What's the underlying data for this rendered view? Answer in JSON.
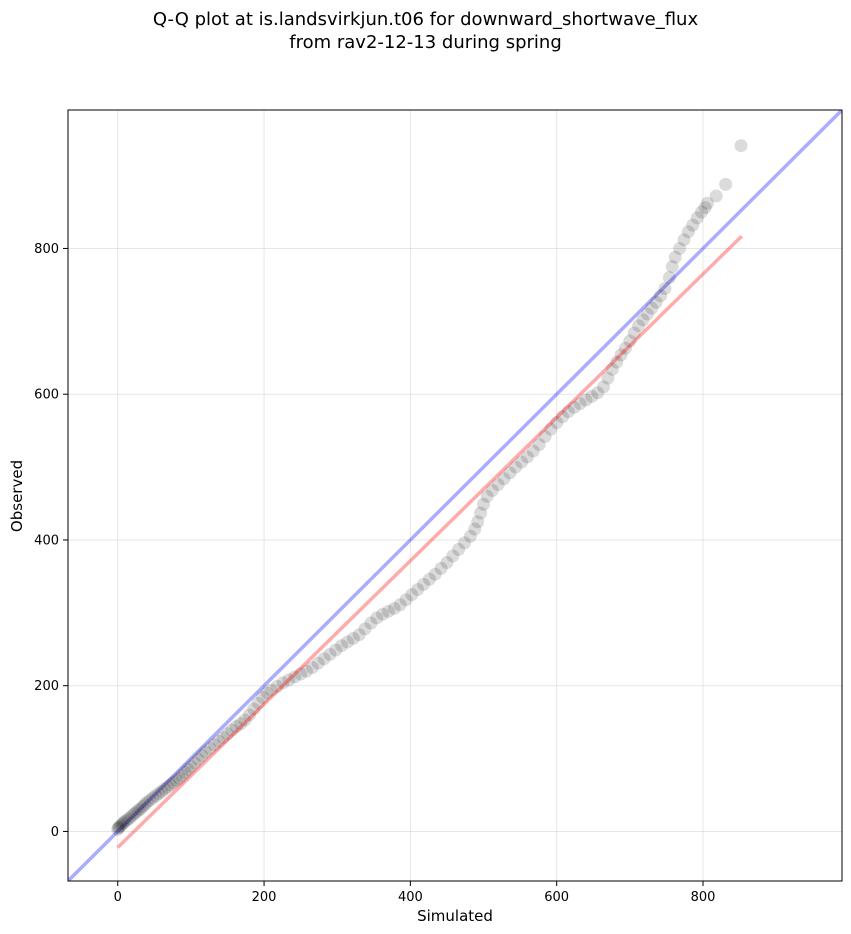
{
  "chart_data": {
    "type": "scatter",
    "title_line1": "Q-Q plot at is.landsvirkjun.t06 for downward_shortwave_flux",
    "title_line2": "from rav2-12-13 during spring",
    "xlabel": "Simulated",
    "ylabel": "Observed",
    "xlim": [
      -68,
      990
    ],
    "ylim": [
      -68,
      990
    ],
    "xticks": [
      0,
      200,
      400,
      600,
      800
    ],
    "yticks": [
      0,
      200,
      400,
      600,
      800
    ],
    "grid": true,
    "reference_line": {
      "color": "#0000ff",
      "alpha": 0.33,
      "x": [
        -68,
        990
      ],
      "y": [
        -68,
        990
      ]
    },
    "fit_line": {
      "color": "#ff0000",
      "alpha": 0.33,
      "x": [
        0,
        853
      ],
      "y": [
        -22,
        817
      ]
    },
    "point_color": "#000000",
    "points": [
      [
        0,
        3
      ],
      [
        1,
        5
      ],
      [
        2,
        6
      ],
      [
        4,
        8
      ],
      [
        6,
        10
      ],
      [
        8,
        12
      ],
      [
        10,
        14
      ],
      [
        13,
        16
      ],
      [
        16,
        18
      ],
      [
        19,
        21
      ],
      [
        22,
        24
      ],
      [
        25,
        26
      ],
      [
        28,
        29
      ],
      [
        31,
        31
      ],
      [
        34,
        34
      ],
      [
        37,
        37
      ],
      [
        40,
        40
      ],
      [
        44,
        43
      ],
      [
        48,
        46
      ],
      [
        52,
        49
      ],
      [
        56,
        52
      ],
      [
        60,
        55
      ],
      [
        64,
        58
      ],
      [
        68,
        61
      ],
      [
        72,
        64
      ],
      [
        76,
        67
      ],
      [
        80,
        70
      ],
      [
        84,
        73
      ],
      [
        88,
        77
      ],
      [
        92,
        81
      ],
      [
        96,
        85
      ],
      [
        100,
        89
      ],
      [
        105,
        94
      ],
      [
        110,
        99
      ],
      [
        115,
        104
      ],
      [
        120,
        109
      ],
      [
        126,
        114
      ],
      [
        132,
        119
      ],
      [
        138,
        124
      ],
      [
        144,
        129
      ],
      [
        150,
        134
      ],
      [
        156,
        139
      ],
      [
        162,
        144
      ],
      [
        168,
        148
      ],
      [
        174,
        153
      ],
      [
        180,
        160
      ],
      [
        186,
        168
      ],
      [
        192,
        176
      ],
      [
        198,
        184
      ],
      [
        204,
        190
      ],
      [
        210,
        194
      ],
      [
        218,
        199
      ],
      [
        226,
        204
      ],
      [
        234,
        208
      ],
      [
        242,
        212
      ],
      [
        250,
        216
      ],
      [
        258,
        220
      ],
      [
        266,
        225
      ],
      [
        274,
        231
      ],
      [
        282,
        237
      ],
      [
        290,
        243
      ],
      [
        298,
        249
      ],
      [
        306,
        255
      ],
      [
        314,
        260
      ],
      [
        322,
        265
      ],
      [
        330,
        270
      ],
      [
        338,
        278
      ],
      [
        346,
        286
      ],
      [
        354,
        293
      ],
      [
        362,
        298
      ],
      [
        370,
        302
      ],
      [
        378,
        306
      ],
      [
        386,
        311
      ],
      [
        394,
        318
      ],
      [
        402,
        325
      ],
      [
        410,
        332
      ],
      [
        418,
        339
      ],
      [
        426,
        346
      ],
      [
        434,
        353
      ],
      [
        442,
        361
      ],
      [
        450,
        369
      ],
      [
        458,
        378
      ],
      [
        466,
        387
      ],
      [
        474,
        396
      ],
      [
        482,
        405
      ],
      [
        488,
        415
      ],
      [
        492,
        425
      ],
      [
        496,
        437
      ],
      [
        500,
        449
      ],
      [
        505,
        460
      ],
      [
        512,
        468
      ],
      [
        520,
        476
      ],
      [
        528,
        484
      ],
      [
        536,
        492
      ],
      [
        544,
        500
      ],
      [
        552,
        507
      ],
      [
        560,
        514
      ],
      [
        568,
        522
      ],
      [
        576,
        531
      ],
      [
        584,
        542
      ],
      [
        592,
        552
      ],
      [
        600,
        561
      ],
      [
        608,
        569
      ],
      [
        616,
        576
      ],
      [
        624,
        582
      ],
      [
        632,
        587
      ],
      [
        640,
        592
      ],
      [
        648,
        597
      ],
      [
        656,
        602
      ],
      [
        664,
        610
      ],
      [
        670,
        622
      ],
      [
        676,
        634
      ],
      [
        682,
        644
      ],
      [
        688,
        654
      ],
      [
        694,
        663
      ],
      [
        700,
        673
      ],
      [
        706,
        684
      ],
      [
        712,
        694
      ],
      [
        718,
        702
      ],
      [
        724,
        710
      ],
      [
        730,
        718
      ],
      [
        736,
        726
      ],
      [
        742,
        735
      ],
      [
        748,
        745
      ],
      [
        754,
        760
      ],
      [
        758,
        775
      ],
      [
        762,
        788
      ],
      [
        768,
        800
      ],
      [
        774,
        812
      ],
      [
        780,
        823
      ],
      [
        786,
        832
      ],
      [
        792,
        842
      ],
      [
        798,
        850
      ],
      [
        803,
        856
      ],
      [
        806,
        862
      ],
      [
        818,
        872
      ],
      [
        831,
        888
      ],
      [
        852,
        941
      ]
    ]
  }
}
